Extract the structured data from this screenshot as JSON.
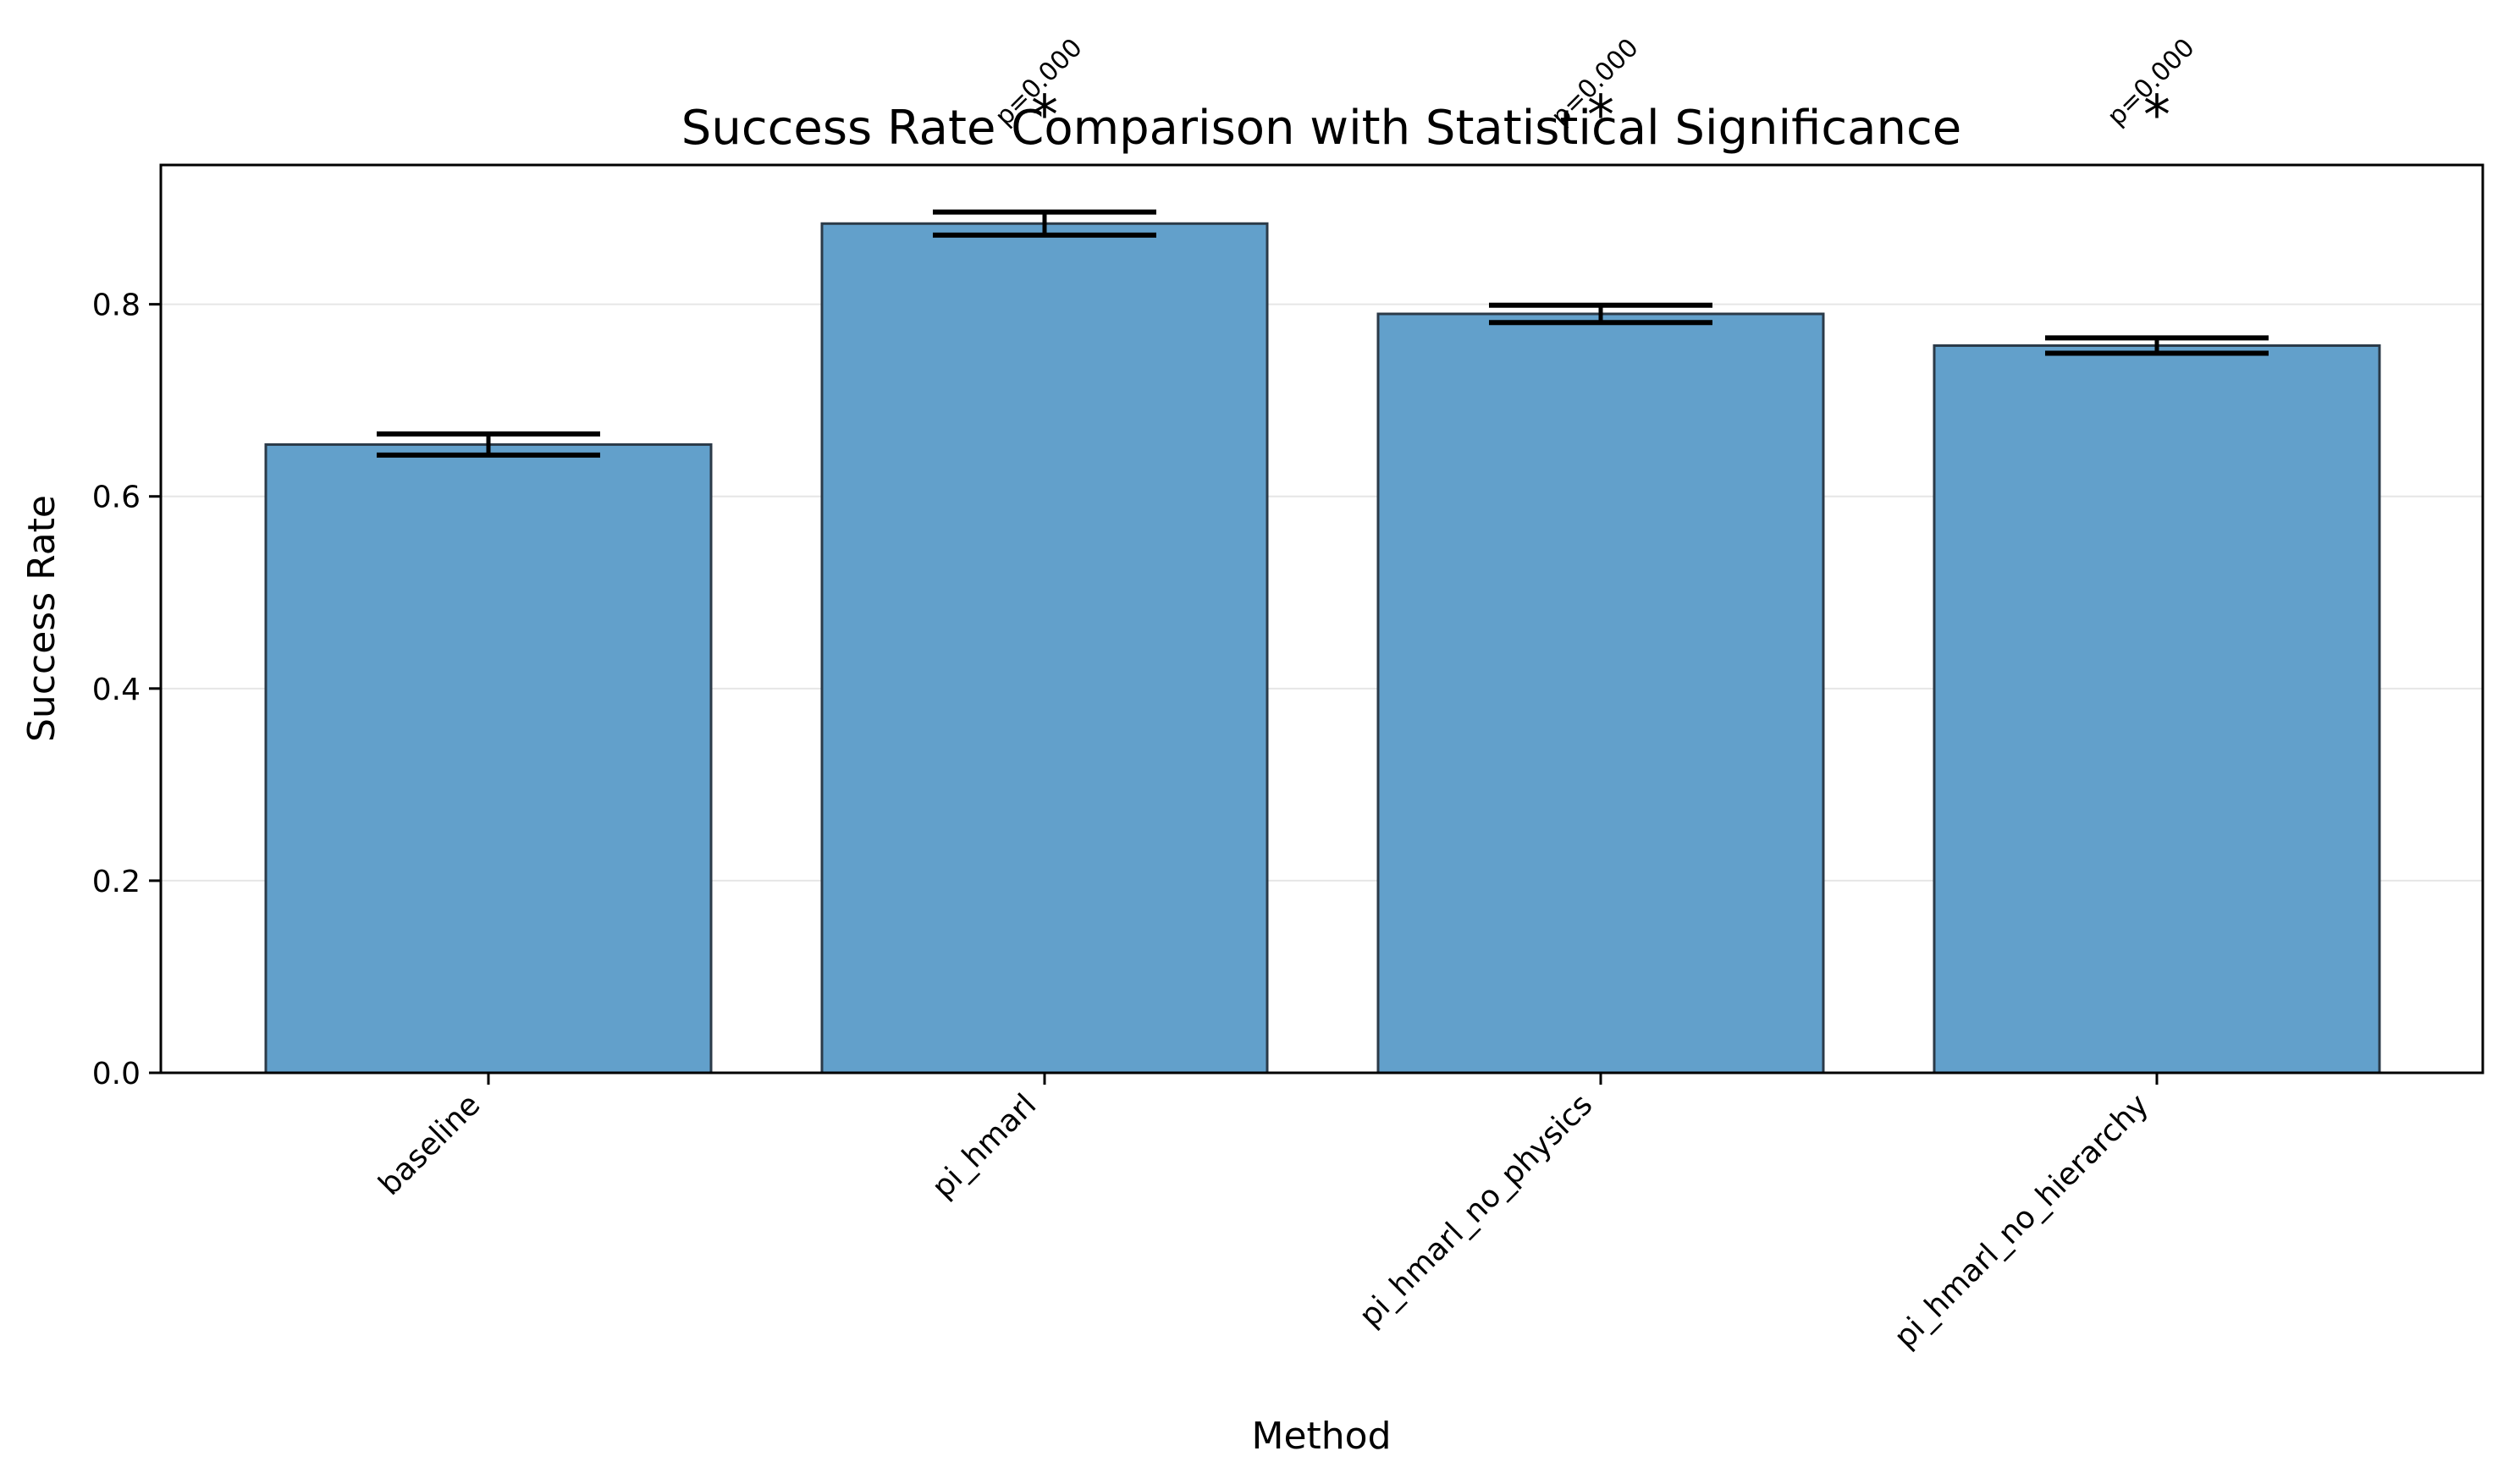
{
  "chart_data": {
    "type": "bar",
    "title": "Success Rate Comparison with Statistical Significance",
    "xlabel": "Method",
    "ylabel": "Success Rate",
    "categories": [
      "baseline",
      "pi_hmarl",
      "pi_hmarl_no_physics",
      "pi_hmarl_no_hierarchy"
    ],
    "values": [
      0.654,
      0.884,
      0.79,
      0.757
    ],
    "errors": [
      0.011,
      0.012,
      0.009,
      0.008
    ],
    "significance": [
      null,
      {
        "p_label": "p=0.000",
        "marker": "*"
      },
      {
        "p_label": "p=0.000",
        "marker": "*"
      },
      {
        "p_label": "p=0.000",
        "marker": "*"
      }
    ],
    "ylim": [
      0,
      0.945
    ],
    "yticks": [
      "0.0",
      "0.2",
      "0.4",
      "0.6",
      "0.8"
    ],
    "grid": "y",
    "legend": "none",
    "colors": {
      "bar": "#62a0cb",
      "bar_edge": "#2b3a48",
      "error": "#000000",
      "grid": "#e6e6e6"
    }
  }
}
